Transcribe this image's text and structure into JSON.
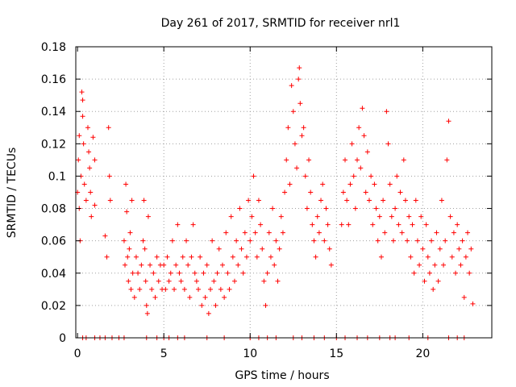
{
  "chart_data": {
    "type": "scatter",
    "title": "Day 261 of 2017, SRMTID for receiver nrl1",
    "xlabel": "GPS time / hours",
    "ylabel": "SRMTID / TECUs",
    "xlim": [
      -0.1,
      24
    ],
    "ylim": [
      0,
      0.18
    ],
    "x_ticks": [
      0,
      5,
      10,
      15,
      20
    ],
    "x_tick_labels": [
      "0",
      "5",
      "10",
      "15",
      "20"
    ],
    "y_ticks": [
      0,
      0.02,
      0.04,
      0.06,
      0.08,
      0.1,
      0.12,
      0.14,
      0.16,
      0.18
    ],
    "y_tick_labels": [
      "0",
      "0.02",
      "0.04",
      "0.06",
      "0.08",
      "0.1",
      "0.12",
      "0.14",
      "0.16",
      "0.18"
    ],
    "grid": true,
    "marker": "plus",
    "color": "#ff0000",
    "series": [
      {
        "name": "SRMTID",
        "points": [
          [
            0.0,
            0.09
          ],
          [
            0.05,
            0.11
          ],
          [
            0.1,
            0.125
          ],
          [
            0.1,
            0.08
          ],
          [
            0.15,
            0.06
          ],
          [
            0.2,
            0.1
          ],
          [
            0.25,
            0.152
          ],
          [
            0.3,
            0.147
          ],
          [
            0.3,
            0.137
          ],
          [
            0.35,
            0.12
          ],
          [
            0.4,
            0.095
          ],
          [
            0.5,
            0.085
          ],
          [
            0.6,
            0.13
          ],
          [
            0.65,
            0.115
          ],
          [
            0.7,
            0.105
          ],
          [
            0.75,
            0.09
          ],
          [
            0.8,
            0.075
          ],
          [
            0.9,
            0.124
          ],
          [
            1.0,
            0.11
          ],
          [
            1.0,
            0.082
          ],
          [
            1.6,
            0.063
          ],
          [
            1.7,
            0.05
          ],
          [
            1.8,
            0.13
          ],
          [
            1.85,
            0.1
          ],
          [
            1.9,
            0.085
          ],
          [
            2.7,
            0.06
          ],
          [
            2.75,
            0.045
          ],
          [
            2.8,
            0.095
          ],
          [
            2.85,
            0.078
          ],
          [
            2.9,
            0.05
          ],
          [
            2.95,
            0.035
          ],
          [
            3.0,
            0.055
          ],
          [
            3.05,
            0.065
          ],
          [
            3.1,
            0.03
          ],
          [
            3.15,
            0.085
          ],
          [
            3.2,
            0.04
          ],
          [
            3.3,
            0.025
          ],
          [
            3.4,
            0.05
          ],
          [
            3.5,
            0.04
          ],
          [
            3.6,
            0.03
          ],
          [
            3.7,
            0.045
          ],
          [
            3.8,
            0.06
          ],
          [
            3.85,
            0.085
          ],
          [
            3.9,
            0.055
          ],
          [
            3.95,
            0.035
          ],
          [
            4.0,
            0.02
          ],
          [
            4.05,
            0.015
          ],
          [
            4.1,
            0.075
          ],
          [
            4.2,
            0.045
          ],
          [
            4.3,
            0.03
          ],
          [
            4.4,
            0.04
          ],
          [
            4.5,
            0.025
          ],
          [
            4.6,
            0.05
          ],
          [
            4.7,
            0.035
          ],
          [
            4.8,
            0.045
          ],
          [
            4.9,
            0.03
          ],
          [
            5.0,
            0.045
          ],
          [
            5.1,
            0.03
          ],
          [
            5.2,
            0.05
          ],
          [
            5.3,
            0.035
          ],
          [
            5.4,
            0.04
          ],
          [
            5.5,
            0.06
          ],
          [
            5.6,
            0.03
          ],
          [
            5.7,
            0.045
          ],
          [
            5.8,
            0.07
          ],
          [
            5.9,
            0.04
          ],
          [
            6.0,
            0.035
          ],
          [
            6.1,
            0.05
          ],
          [
            6.2,
            0.03
          ],
          [
            6.3,
            0.06
          ],
          [
            6.4,
            0.045
          ],
          [
            6.5,
            0.025
          ],
          [
            6.6,
            0.05
          ],
          [
            6.7,
            0.07
          ],
          [
            6.8,
            0.04
          ],
          [
            6.9,
            0.035
          ],
          [
            7.0,
            0.03
          ],
          [
            7.1,
            0.05
          ],
          [
            7.2,
            0.02
          ],
          [
            7.3,
            0.04
          ],
          [
            7.4,
            0.025
          ],
          [
            7.5,
            0.045
          ],
          [
            7.6,
            0.015
          ],
          [
            7.7,
            0.03
          ],
          [
            7.8,
            0.06
          ],
          [
            7.9,
            0.035
          ],
          [
            8.0,
            0.02
          ],
          [
            8.1,
            0.04
          ],
          [
            8.2,
            0.055
          ],
          [
            8.3,
            0.03
          ],
          [
            8.4,
            0.045
          ],
          [
            8.5,
            0.025
          ],
          [
            8.6,
            0.065
          ],
          [
            8.7,
            0.04
          ],
          [
            8.8,
            0.03
          ],
          [
            8.9,
            0.075
          ],
          [
            9.0,
            0.05
          ],
          [
            9.1,
            0.035
          ],
          [
            9.2,
            0.06
          ],
          [
            9.3,
            0.045
          ],
          [
            9.4,
            0.08
          ],
          [
            9.5,
            0.055
          ],
          [
            9.6,
            0.04
          ],
          [
            9.7,
            0.065
          ],
          [
            9.8,
            0.05
          ],
          [
            9.9,
            0.085
          ],
          [
            10.0,
            0.06
          ],
          [
            10.1,
            0.075
          ],
          [
            10.2,
            0.1
          ],
          [
            10.3,
            0.065
          ],
          [
            10.4,
            0.05
          ],
          [
            10.5,
            0.085
          ],
          [
            10.6,
            0.07
          ],
          [
            10.7,
            0.055
          ],
          [
            10.8,
            0.035
          ],
          [
            10.9,
            0.02
          ],
          [
            11.0,
            0.04
          ],
          [
            11.1,
            0.065
          ],
          [
            11.2,
            0.05
          ],
          [
            11.3,
            0.08
          ],
          [
            11.4,
            0.045
          ],
          [
            11.5,
            0.06
          ],
          [
            11.6,
            0.035
          ],
          [
            11.7,
            0.055
          ],
          [
            11.8,
            0.075
          ],
          [
            11.9,
            0.065
          ],
          [
            12.0,
            0.09
          ],
          [
            12.1,
            0.11
          ],
          [
            12.2,
            0.13
          ],
          [
            12.3,
            0.095
          ],
          [
            12.4,
            0.156
          ],
          [
            12.5,
            0.14
          ],
          [
            12.6,
            0.12
          ],
          [
            12.7,
            0.105
          ],
          [
            12.8,
            0.16
          ],
          [
            12.85,
            0.167
          ],
          [
            12.9,
            0.145
          ],
          [
            13.0,
            0.125
          ],
          [
            13.1,
            0.13
          ],
          [
            13.2,
            0.1
          ],
          [
            13.3,
            0.08
          ],
          [
            13.4,
            0.11
          ],
          [
            13.5,
            0.09
          ],
          [
            13.6,
            0.07
          ],
          [
            13.7,
            0.06
          ],
          [
            13.8,
            0.05
          ],
          [
            13.9,
            0.075
          ],
          [
            14.0,
            0.065
          ],
          [
            14.1,
            0.085
          ],
          [
            14.2,
            0.095
          ],
          [
            14.3,
            0.06
          ],
          [
            14.4,
            0.08
          ],
          [
            14.5,
            0.07
          ],
          [
            14.6,
            0.055
          ],
          [
            14.7,
            0.045
          ],
          [
            15.3,
            0.07
          ],
          [
            15.4,
            0.09
          ],
          [
            15.5,
            0.11
          ],
          [
            15.6,
            0.085
          ],
          [
            15.7,
            0.07
          ],
          [
            15.8,
            0.095
          ],
          [
            15.9,
            0.12
          ],
          [
            16.0,
            0.1
          ],
          [
            16.1,
            0.08
          ],
          [
            16.2,
            0.11
          ],
          [
            16.3,
            0.13
          ],
          [
            16.4,
            0.105
          ],
          [
            16.5,
            0.142
          ],
          [
            16.6,
            0.125
          ],
          [
            16.7,
            0.09
          ],
          [
            16.8,
            0.115
          ],
          [
            16.9,
            0.085
          ],
          [
            17.0,
            0.1
          ],
          [
            17.1,
            0.07
          ],
          [
            17.2,
            0.095
          ],
          [
            17.3,
            0.08
          ],
          [
            17.4,
            0.06
          ],
          [
            17.5,
            0.075
          ],
          [
            17.6,
            0.05
          ],
          [
            17.7,
            0.085
          ],
          [
            17.8,
            0.065
          ],
          [
            17.9,
            0.14
          ],
          [
            18.0,
            0.12
          ],
          [
            18.1,
            0.095
          ],
          [
            18.2,
            0.075
          ],
          [
            18.3,
            0.06
          ],
          [
            18.4,
            0.08
          ],
          [
            18.5,
            0.1
          ],
          [
            18.6,
            0.07
          ],
          [
            18.7,
            0.09
          ],
          [
            18.8,
            0.065
          ],
          [
            18.9,
            0.11
          ],
          [
            19.0,
            0.085
          ],
          [
            19.1,
            0.06
          ],
          [
            19.2,
            0.075
          ],
          [
            19.3,
            0.05
          ],
          [
            19.4,
            0.07
          ],
          [
            19.5,
            0.04
          ],
          [
            19.6,
            0.085
          ],
          [
            19.7,
            0.06
          ],
          [
            19.8,
            0.045
          ],
          [
            19.9,
            0.075
          ],
          [
            20.0,
            0.055
          ],
          [
            20.1,
            0.035
          ],
          [
            20.2,
            0.07
          ],
          [
            20.3,
            0.05
          ],
          [
            20.4,
            0.04
          ],
          [
            20.5,
            0.06
          ],
          [
            20.6,
            0.03
          ],
          [
            20.7,
            0.045
          ],
          [
            20.8,
            0.065
          ],
          [
            20.9,
            0.035
          ],
          [
            21.0,
            0.055
          ],
          [
            21.1,
            0.085
          ],
          [
            21.2,
            0.045
          ],
          [
            21.3,
            0.06
          ],
          [
            21.4,
            0.11
          ],
          [
            21.5,
            0.134
          ],
          [
            21.6,
            0.075
          ],
          [
            21.7,
            0.05
          ],
          [
            21.8,
            0.065
          ],
          [
            21.9,
            0.04
          ],
          [
            22.0,
            0.07
          ],
          [
            22.1,
            0.055
          ],
          [
            22.2,
            0.045
          ],
          [
            22.3,
            0.06
          ],
          [
            22.4,
            0.025
          ],
          [
            22.5,
            0.05
          ],
          [
            22.6,
            0.065
          ],
          [
            22.7,
            0.04
          ],
          [
            22.8,
            0.055
          ],
          [
            22.9,
            0.021
          ],
          [
            0.3,
            0.0
          ],
          [
            0.5,
            0.0
          ],
          [
            1.0,
            0.0
          ],
          [
            1.3,
            0.0
          ],
          [
            1.6,
            0.0
          ],
          [
            2.0,
            0.0
          ],
          [
            2.4,
            0.0
          ],
          [
            2.7,
            0.0
          ],
          [
            4.0,
            0.0
          ],
          [
            4.6,
            0.0
          ],
          [
            5.0,
            0.0
          ],
          [
            5.3,
            0.0
          ],
          [
            5.8,
            0.0
          ],
          [
            6.2,
            0.0
          ],
          [
            7.5,
            0.0
          ],
          [
            8.5,
            0.0
          ],
          [
            10.0,
            0.0
          ],
          [
            10.5,
            0.0
          ],
          [
            11.0,
            0.0
          ],
          [
            11.5,
            0.0
          ],
          [
            12.5,
            0.0
          ],
          [
            13.0,
            0.0
          ],
          [
            13.7,
            0.0
          ],
          [
            14.3,
            0.0
          ],
          [
            15.0,
            0.0
          ],
          [
            15.5,
            0.0
          ],
          [
            16.2,
            0.0
          ],
          [
            16.8,
            0.0
          ],
          [
            17.5,
            0.0
          ],
          [
            18.1,
            0.0
          ],
          [
            18.4,
            0.0
          ],
          [
            19.2,
            0.0
          ],
          [
            20.3,
            0.0
          ],
          [
            21.5,
            0.0
          ],
          [
            22.0,
            0.0
          ],
          [
            22.4,
            0.0
          ]
        ]
      }
    ]
  }
}
